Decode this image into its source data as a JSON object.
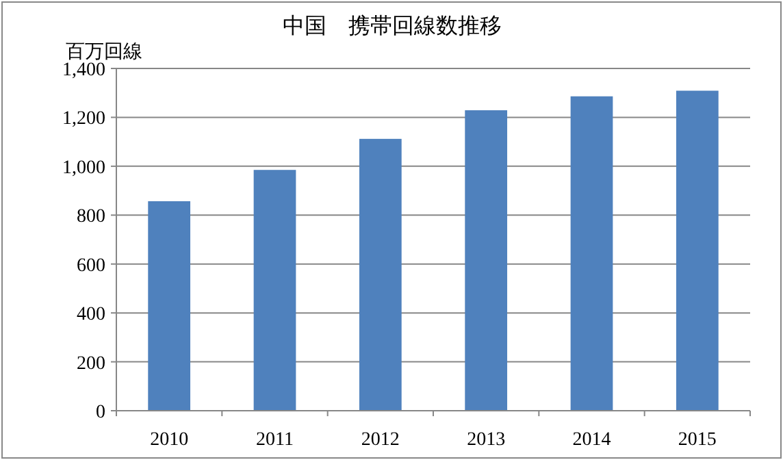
{
  "chart_data": {
    "type": "bar",
    "title": "中国　携帯回線数推移",
    "ylabel": "百万回線",
    "categories": [
      "2010",
      "2011",
      "2012",
      "2013",
      "2014",
      "2015"
    ],
    "values": [
      857,
      985,
      1112,
      1229,
      1286,
      1309
    ],
    "color": "#4f81bd",
    "ylim": [
      0,
      1400
    ],
    "yticks": [
      {
        "value": 0,
        "label": "0"
      },
      {
        "value": 200,
        "label": "200"
      },
      {
        "value": 400,
        "label": "400"
      },
      {
        "value": 600,
        "label": "600"
      },
      {
        "value": 800,
        "label": "800"
      },
      {
        "value": 1000,
        "label": "1,000"
      },
      {
        "value": 1200,
        "label": "1,200"
      },
      {
        "value": 1400,
        "label": "1,400"
      }
    ],
    "grid": "y"
  }
}
